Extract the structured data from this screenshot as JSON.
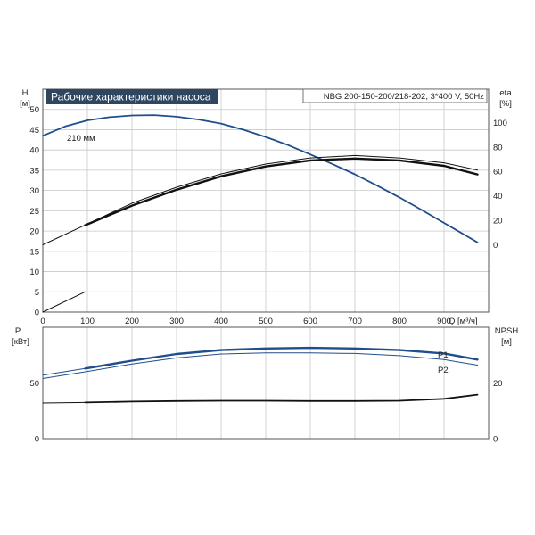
{
  "chart_data": {
    "type": "line",
    "title": "Рабочие характеристики насоса",
    "info": "NBG 200-150-200/218-202, 3*400 V, 50Hz",
    "colors": {
      "blue": "#1f4e8c",
      "black": "#111111",
      "title_bg": "#2f4660"
    },
    "top": {
      "xlabel": "Q [м³/ч]",
      "ylabel_left": [
        "H",
        "[м]"
      ],
      "ylabel_right": [
        "eta",
        "[%]"
      ],
      "xlim": [
        0,
        1000
      ],
      "ylim_left": [
        0,
        55
      ],
      "ylim_right": [
        -55,
        127.2
      ],
      "xticks": [
        "0",
        "100",
        "200",
        "300",
        "400",
        "500",
        "600",
        "700",
        "800",
        "900"
      ],
      "yticks_left": [
        "0",
        "5",
        "10",
        "15",
        "20",
        "25",
        "30",
        "35",
        "40",
        "45",
        "50"
      ],
      "yticks_right": [
        "0",
        "20",
        "40",
        "60",
        "80",
        "100"
      ],
      "annotation": "210 мм",
      "series": [
        {
          "axis": "left",
          "color": "#1f4e8c",
          "width": 1.8,
          "x": [
            0,
            50,
            100,
            150,
            200,
            250,
            300,
            350,
            400,
            450,
            500,
            550,
            600,
            650,
            700,
            750,
            800,
            850,
            900,
            950,
            975
          ],
          "y": [
            43.5,
            45.8,
            47.3,
            48.1,
            48.5,
            48.6,
            48.2,
            47.5,
            46.5,
            45.0,
            43.2,
            41.2,
            38.9,
            36.5,
            34.0,
            31.2,
            28.3,
            25.2,
            22.0,
            18.8,
            17.2
          ]
        },
        {
          "axis": "right",
          "color": "#111111",
          "width": 1.0,
          "x": [
            0,
            100,
            200,
            300,
            400,
            500,
            600,
            700,
            800,
            900,
            975
          ],
          "y": [
            0,
            17.0,
            34.0,
            47.0,
            58.0,
            66.0,
            71.0,
            73.0,
            71.0,
            67.0,
            61.0
          ]
        },
        {
          "axis": "right",
          "color": "#111111",
          "width": 2.4,
          "x": [
            95,
            200,
            300,
            400,
            500,
            600,
            700,
            800,
            900,
            975
          ],
          "y": [
            16.0,
            32.0,
            45.0,
            56.0,
            64.0,
            69.0,
            70.5,
            69.0,
            64.5,
            57.5
          ]
        },
        {
          "axis": "left",
          "color": "#111111",
          "width": 1.0,
          "x": [
            0,
            95
          ],
          "y": [
            0,
            5.0
          ]
        }
      ]
    },
    "bottom": {
      "ylabel_left": [
        "P",
        "[кВт]"
      ],
      "ylabel_right": [
        "NPSH",
        "[м]"
      ],
      "xlim": [
        0,
        1000
      ],
      "ylim_left": [
        0,
        100
      ],
      "ylim_right": [
        0,
        40
      ],
      "yticks_left": [
        "0",
        "50"
      ],
      "yticks_right": [
        "0",
        "20"
      ],
      "labels": [
        "P1",
        "P2"
      ],
      "series": [
        {
          "axis": "left",
          "color": "#1f4e8c",
          "width": 1.0,
          "x": [
            0,
            95
          ],
          "y": [
            57,
            63
          ]
        },
        {
          "axis": "left",
          "color": "#1f4e8c",
          "width": 2.4,
          "x": [
            95,
            200,
            300,
            400,
            500,
            600,
            700,
            800,
            900,
            975
          ],
          "y": [
            63,
            70,
            76,
            79.5,
            81,
            81.5,
            81,
            79.5,
            76.5,
            71
          ]
        },
        {
          "axis": "left",
          "color": "#1f4e8c",
          "width": 1.0,
          "x": [
            0,
            95,
            200,
            300,
            400,
            500,
            600,
            700,
            800,
            900,
            975
          ],
          "y": [
            54,
            60,
            67,
            72.5,
            76,
            77,
            77,
            76.5,
            74.5,
            71,
            66
          ]
        },
        {
          "axis": "right",
          "color": "#111111",
          "width": 1.0,
          "x": [
            0,
            95
          ],
          "y": [
            12.8,
            13.0
          ]
        },
        {
          "axis": "right",
          "color": "#111111",
          "width": 1.8,
          "x": [
            95,
            200,
            300,
            400,
            500,
            600,
            700,
            800,
            900,
            975
          ],
          "y": [
            13.0,
            13.3,
            13.5,
            13.6,
            13.6,
            13.5,
            13.5,
            13.6,
            14.3,
            15.8
          ]
        }
      ]
    }
  }
}
